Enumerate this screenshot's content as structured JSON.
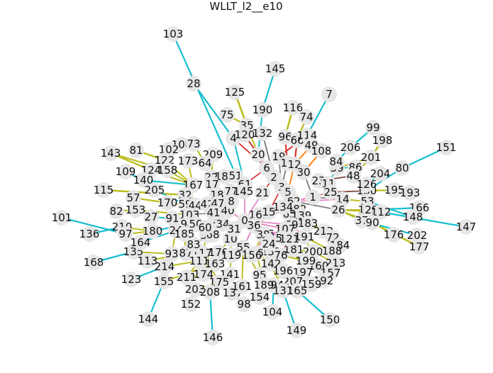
{
  "figure": {
    "title": "WLLT_l2__e10",
    "colors": {
      "background": "#ffffff",
      "node_fill": "#e6e6e6",
      "label": "#111111",
      "edge_palette": [
        "#17becf",
        "#bcbd22",
        "#7f7f7f",
        "#e377c2",
        "#8c564b",
        "#9467bd",
        "#d62728",
        "#2ca02c",
        "#ff7f0e",
        "#1f77b4"
      ]
    }
  },
  "chart_data": {
    "type": "network",
    "title": "WLLT_l2__e10",
    "node_labels": [
      "103",
      "145",
      "28",
      "125",
      "7",
      "190",
      "116",
      "75",
      "74",
      "35",
      "4",
      "120",
      "132",
      "96",
      "66",
      "114",
      "49",
      "99",
      "206",
      "198",
      "151",
      "100",
      "73",
      "209",
      "20",
      "19",
      "16",
      "12",
      "108",
      "39",
      "84",
      "86",
      "201",
      "80",
      "143",
      "81",
      "102",
      "122",
      "173",
      "64",
      "6",
      "30",
      "48",
      "204",
      "109",
      "124",
      "158",
      "22",
      "186",
      "51",
      "2",
      "23",
      "11",
      "130",
      "195",
      "193",
      "140",
      "167",
      "17",
      "61",
      "115",
      "32",
      "18",
      "77",
      "145b",
      "21",
      "3",
      "5",
      "25",
      "53",
      "1",
      "14",
      "129",
      "112",
      "166",
      "57",
      "153",
      "205",
      "170",
      "59",
      "44",
      "62",
      "182",
      "126",
      "148",
      "82",
      "13",
      "27",
      "91",
      "103b",
      "40",
      "26",
      "37",
      "90",
      "176",
      "202",
      "147",
      "101",
      "136",
      "210",
      "97",
      "180",
      "94",
      "50",
      "9",
      "34",
      "0",
      "161",
      "65",
      "139",
      "183",
      "212",
      "72",
      "184",
      "24",
      "36",
      "10",
      "31",
      "115b",
      "69",
      "185",
      "107",
      "191",
      "200",
      "188",
      "213",
      "160",
      "199",
      "157",
      "192",
      "55",
      "133",
      "38",
      "56",
      "29",
      "76",
      "181",
      "197",
      "207",
      "159",
      "165",
      "135",
      "164",
      "93",
      "87",
      "117",
      "170b",
      "119",
      "156",
      "142",
      "196",
      "194",
      "131",
      "168",
      "113",
      "214",
      "111",
      "163",
      "155",
      "123",
      "211",
      "174",
      "141",
      "95",
      "189",
      "203",
      "175",
      "208",
      "137",
      "161b",
      "154",
      "152",
      "144",
      "98",
      "104",
      "146",
      "149",
      "150",
      "177",
      "15",
      "52",
      "121",
      "58",
      "68",
      "83",
      "60",
      "42",
      "47",
      "41",
      "8",
      "134",
      "24b"
    ],
    "hub_label": "0",
    "n_edges_shown": "approx 300"
  }
}
